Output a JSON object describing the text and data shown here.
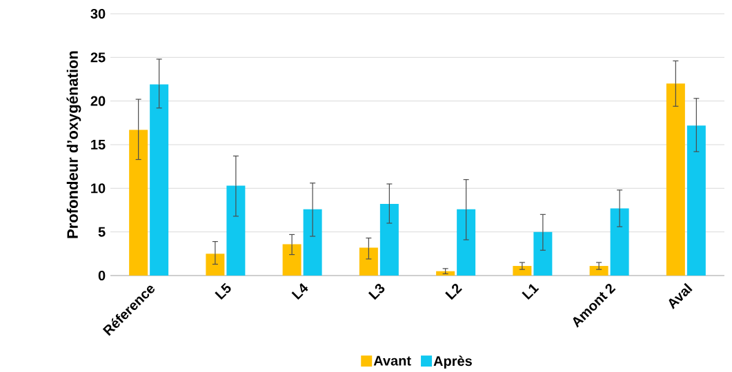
{
  "chart_data": {
    "type": "bar",
    "ylabel": "Profondeur d’oxygénation",
    "categories": [
      "Réference",
      "L5",
      "L4",
      "L3",
      "L2",
      "L1",
      "Amont 2",
      "Aval"
    ],
    "series": [
      {
        "name": "Avant",
        "color": "#ffc000",
        "values": [
          16.7,
          2.5,
          3.6,
          3.2,
          0.5,
          1.1,
          1.1,
          22.0
        ],
        "errors": [
          [
            13.3,
            20.2
          ],
          [
            1.3,
            3.9
          ],
          [
            2.4,
            4.7
          ],
          [
            1.9,
            4.3
          ],
          [
            0.2,
            0.8
          ],
          [
            0.7,
            1.5
          ],
          [
            0.7,
            1.5
          ],
          [
            19.4,
            24.6
          ]
        ]
      },
      {
        "name": "Après",
        "color": "#10c8f0",
        "values": [
          21.9,
          10.3,
          7.6,
          8.2,
          7.6,
          5.0,
          7.7,
          17.2
        ],
        "errors": [
          [
            19.2,
            24.8
          ],
          [
            6.8,
            13.7
          ],
          [
            4.5,
            10.6
          ],
          [
            6.0,
            10.5
          ],
          [
            4.1,
            11.0
          ],
          [
            2.9,
            7.0
          ],
          [
            5.6,
            9.8
          ],
          [
            14.2,
            20.3
          ]
        ]
      }
    ],
    "ylim": [
      0,
      30
    ],
    "yticks": [
      0,
      5,
      10,
      15,
      20,
      25,
      30
    ],
    "grid": "y",
    "legend": "bottom"
  }
}
